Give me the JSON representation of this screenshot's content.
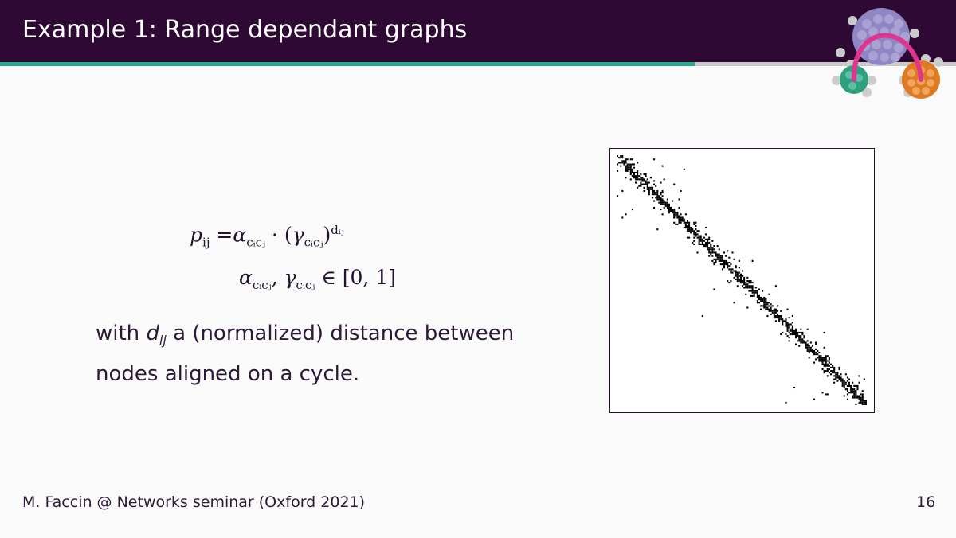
{
  "slide": {
    "title": "Example 1: Range dependant graphs",
    "progress_fraction": 0.727
  },
  "equations": {
    "line1": {
      "lhs": "p",
      "lhs_sub": "ij",
      "eq": "=",
      "alpha": "α",
      "alpha_sub": "cᵢcⱼ",
      "dot": "·",
      "open": "(",
      "gamma": "γ",
      "gamma_sub": "cᵢcⱼ",
      "close": ")",
      "exp": "dᵢⱼ"
    },
    "line2": {
      "alpha": "α",
      "alpha_sub": "cᵢcⱼ",
      "comma": ",",
      "gamma": "γ",
      "gamma_sub": "cᵢcⱼ",
      "in": "∈",
      "interval": "[0, 1]"
    }
  },
  "description": {
    "prefix": "with",
    "var": "d",
    "var_sub": "ij",
    "suffix": "a (normalized) distance between nodes aligned on a cycle."
  },
  "figure": {
    "type": "adjacency-matrix",
    "colors": {
      "filled": "#000000",
      "empty": "#ffffff"
    }
  },
  "footer": {
    "author": "M. Faccin @ Networks seminar (Oxford 2021)",
    "page": "16"
  },
  "theme": {
    "header_bg": "#2d0934",
    "progress_color": "#2aa68f",
    "logo_colors": [
      "#8f86c4",
      "#e0358e",
      "#2ea07e",
      "#e07a22",
      "#cccccc"
    ]
  }
}
